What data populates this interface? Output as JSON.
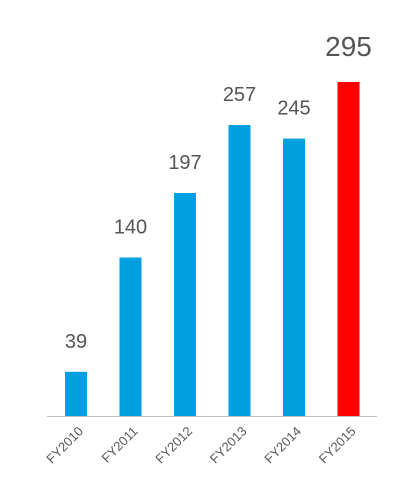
{
  "chart_data": {
    "type": "bar",
    "categories": [
      "FY2010",
      "FY2011",
      "FY2012",
      "FY2013",
      "FY2014",
      "FY2015"
    ],
    "values": [
      39,
      140,
      197,
      257,
      245,
      295
    ],
    "value_labels": [
      "39",
      "140",
      "197",
      "257",
      "245",
      "295"
    ],
    "highlight_index": 5,
    "ylim": [
      0,
      295
    ],
    "grid": false,
    "legend": "none",
    "title": "",
    "xlabel": "",
    "ylabel": "",
    "colors": {
      "bar": "#00A0E0",
      "highlight_bar": "#FF0000",
      "highlight_label": "#FF0000",
      "label": "#555555",
      "tick_label": "#595959",
      "axis": "#BFBFBF"
    }
  }
}
